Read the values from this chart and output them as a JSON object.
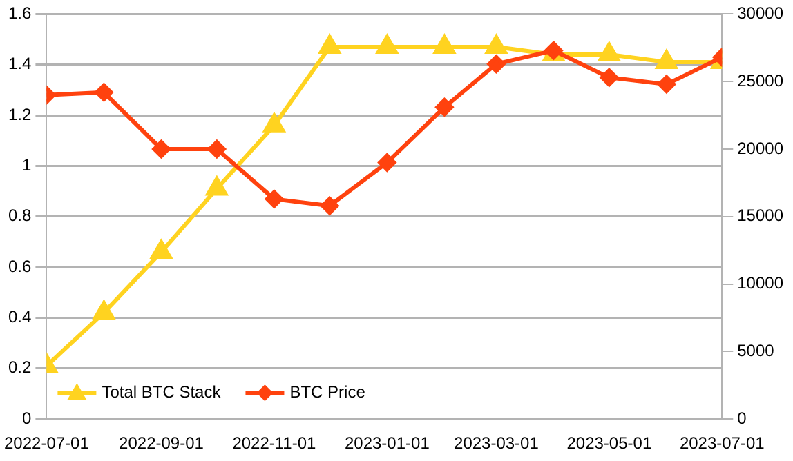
{
  "chart_data": {
    "type": "line",
    "x": [
      "2022-07-01",
      "2022-08-01",
      "2022-09-01",
      "2022-10-01",
      "2022-11-01",
      "2022-12-01",
      "2023-01-01",
      "2023-02-01",
      "2023-03-01",
      "2023-04-01",
      "2023-05-01",
      "2023-06-01",
      "2023-07-01"
    ],
    "series": [
      {
        "name": "Total BTC Stack",
        "color": "#ffd320",
        "marker": "triangle",
        "values": [
          0.21,
          0.42,
          0.66,
          0.91,
          1.16,
          1.47,
          1.47,
          1.47,
          1.47,
          1.44,
          1.44,
          1.41,
          1.41
        ]
      },
      {
        "name": "BTC Price",
        "color": "#ff420e",
        "marker": "diamond",
        "axis": "y2",
        "values": [
          24000,
          24200,
          20000,
          20000,
          16300,
          15800,
          19000,
          23100,
          26300,
          27300,
          25300,
          24800,
          26800
        ]
      }
    ],
    "xlim": [
      "2022-07-01",
      "2023-07-01"
    ],
    "xticks": [
      "2022-07-01",
      "2022-09-01",
      "2022-11-01",
      "2023-01-01",
      "2023-03-01",
      "2023-05-01",
      "2023-07-01"
    ],
    "ylim": [
      0,
      1.6
    ],
    "yticks": [
      0,
      0.2,
      0.4,
      0.6,
      0.8,
      1,
      1.2,
      1.4,
      1.6
    ],
    "y2lim": [
      0,
      30000
    ],
    "y2ticks": [
      0,
      5000,
      10000,
      15000,
      20000,
      25000,
      30000
    ],
    "grid": "y",
    "legend": "bottom left"
  }
}
